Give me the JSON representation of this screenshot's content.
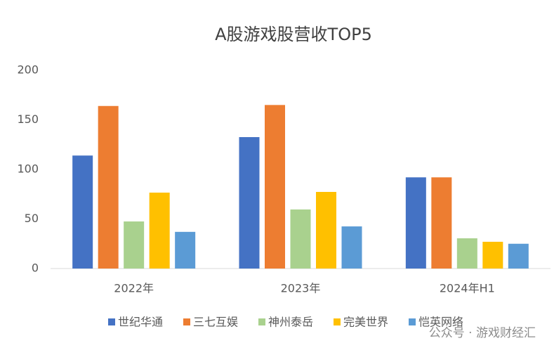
{
  "chart_data": {
    "type": "bar",
    "title": "A股游戏股营收TOP5",
    "categories": [
      "2022年",
      "2023年",
      "2024年H1"
    ],
    "series": [
      {
        "name": "世纪华通",
        "color": "#4472c4",
        "values": [
          114,
          132.6,
          92
        ]
      },
      {
        "name": "三七互娱",
        "color": "#ed7d31",
        "values": [
          164,
          165,
          92
        ]
      },
      {
        "name": "神州泰岳",
        "color": "#a9d18e",
        "values": [
          47.5,
          59.6,
          30.5
        ]
      },
      {
        "name": "完美世界",
        "color": "#ffc000",
        "values": [
          76.6,
          77.3,
          27
        ]
      },
      {
        "name": "恺英网络",
        "color": "#5b9bd5",
        "values": [
          37,
          42.5,
          25
        ]
      }
    ],
    "ylim": [
      0,
      200
    ],
    "yticks": [
      0,
      50,
      100,
      150,
      200
    ],
    "grid": false,
    "legend": "bottom",
    "watermark": "公众号 · 游戏财经汇"
  }
}
